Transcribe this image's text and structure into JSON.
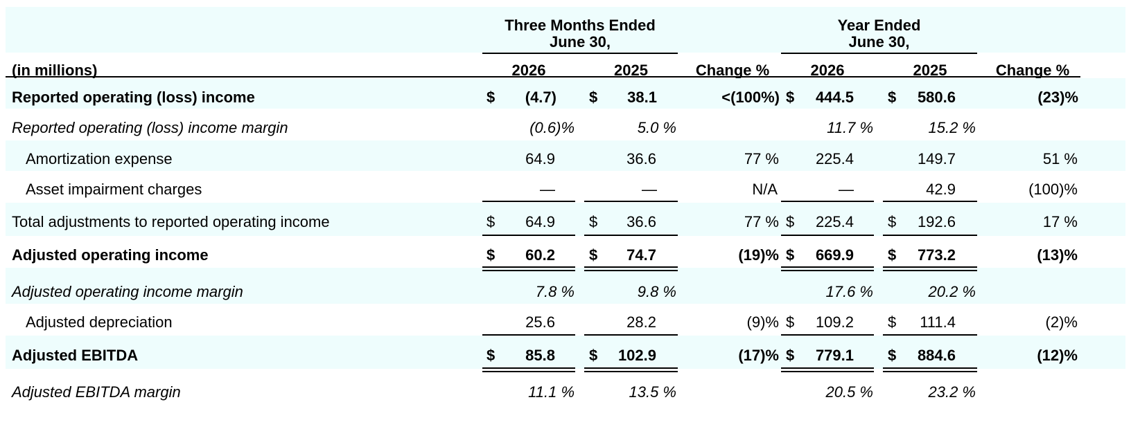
{
  "header": {
    "group1_line1": "Three Months Ended",
    "group1_line2": "June 30,",
    "group2_line1": "Year Ended",
    "group2_line2": "June 30,",
    "units": "(in millions)",
    "col_q_2026": "2026",
    "col_q_2025": "2025",
    "col_q_change": "Change %",
    "col_y_2026": "2026",
    "col_y_2025": "2025",
    "col_y_change": "Change %"
  },
  "rows": [
    {
      "label": "Reported operating (loss) income",
      "q26_sym": "$",
      "q26": "(4.7)",
      "q25_sym": "$",
      "q25": "38.1",
      "qchg": "<(100%)",
      "y26_sym": "$",
      "y26": "444.5",
      "y25_sym": "$",
      "y25": "580.6",
      "ychg": "(23)%"
    },
    {
      "label": "Reported operating (loss) income margin",
      "q26": "(0.6)%",
      "q25": "5.0 %",
      "y26": "11.7 %",
      "y25": "15.2 %"
    },
    {
      "label": "Amortization expense",
      "q26": "64.9",
      "q25": "36.6",
      "qchg": "77 %",
      "y26": "225.4",
      "y25": "149.7",
      "ychg": "51 %"
    },
    {
      "label": "Asset impairment charges",
      "q26": "—",
      "q25": "—",
      "qchg": "N/A",
      "y26": "—",
      "y25": "42.9",
      "ychg": "(100)%"
    },
    {
      "label": "Total adjustments to reported operating income",
      "q26_sym": "$",
      "q26": "64.9",
      "q25_sym": "$",
      "q25": "36.6",
      "qchg": "77 %",
      "y26_sym": "$",
      "y26": "225.4",
      "y25_sym": "$",
      "y25": "192.6",
      "ychg": "17 %"
    },
    {
      "label": "Adjusted operating income",
      "q26_sym": "$",
      "q26": "60.2",
      "q25_sym": "$",
      "q25": "74.7",
      "qchg": "(19)%",
      "y26_sym": "$",
      "y26": "669.9",
      "y25_sym": "$",
      "y25": "773.2",
      "ychg": "(13)%"
    },
    {
      "label": "Adjusted operating income margin",
      "q26": "7.8 %",
      "q25": "9.8 %",
      "y26": "17.6 %",
      "y25": "20.2 %"
    },
    {
      "label": "Adjusted depreciation",
      "q26": "25.6",
      "q25": "28.2",
      "qchg": "(9)%",
      "y26_sym": "$",
      "y26": "109.2",
      "y25_sym": "$",
      "y25": "111.4",
      "ychg": "(2)%"
    },
    {
      "label": "Adjusted EBITDA",
      "q26_sym": "$",
      "q26": "85.8",
      "q25_sym": "$",
      "q25": "102.9",
      "qchg": "(17)%",
      "y26_sym": "$",
      "y26": "779.1",
      "y25_sym": "$",
      "y25": "884.6",
      "ychg": "(12)%"
    },
    {
      "label": "Adjusted EBITDA margin",
      "q26": "11.1 %",
      "q25": "13.5 %",
      "y26": "20.5 %",
      "y25": "23.2 %"
    }
  ]
}
